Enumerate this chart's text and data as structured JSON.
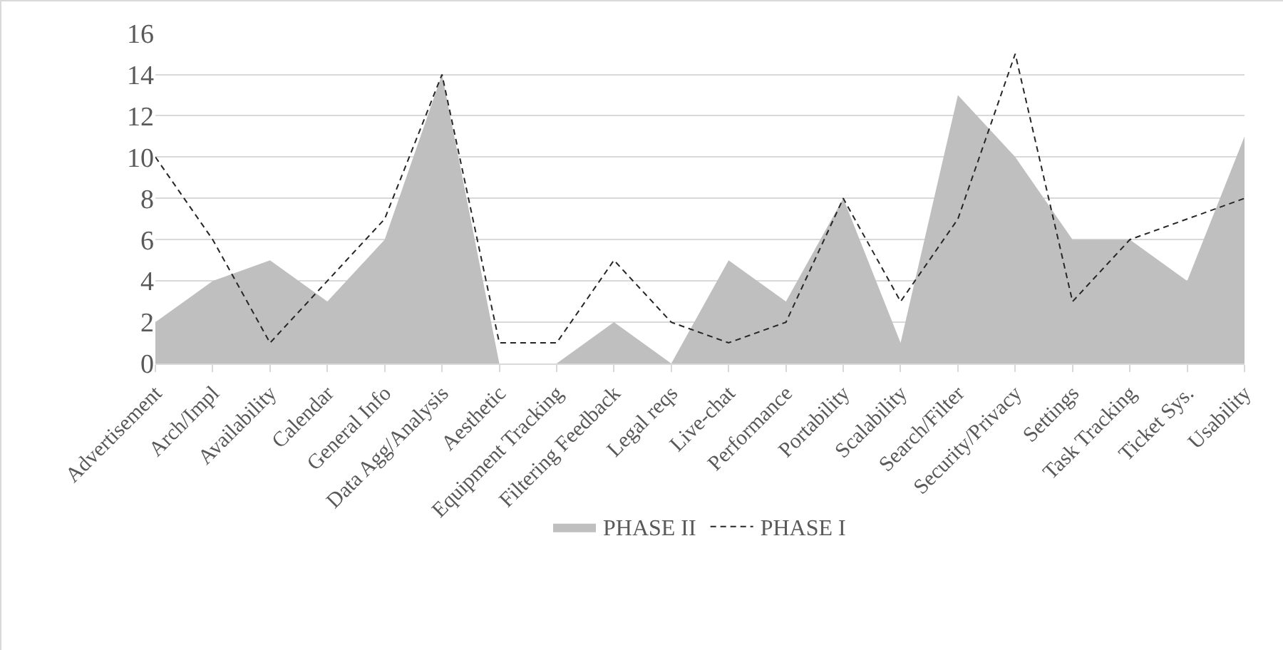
{
  "chart_data": {
    "type": "area",
    "categories": [
      "Advertisement",
      "Arch/Impl",
      "Availability",
      "Calendar",
      "General Info",
      "Data Agg/Analysis",
      "Aesthetic",
      "Equipment Tracking",
      "Filtering Feedback",
      "Legal reqs",
      "Live-chat",
      "Performance",
      "Portability",
      "Scalability",
      "Search/Filter",
      "Security/Privacy",
      "Settings",
      "Task Tracking",
      "Ticket Sys.",
      "Usability"
    ],
    "series": [
      {
        "name": "PHASE II",
        "color": "#bfbfbf",
        "values": [
          2,
          4,
          5,
          3,
          6,
          14,
          0,
          0,
          2,
          0,
          5,
          3,
          8,
          1,
          13,
          10,
          6,
          6,
          4,
          11
        ]
      },
      {
        "name": "PHASE I",
        "type": "line",
        "color": "#262626",
        "line_style": "dashed",
        "values": [
          10,
          6,
          1,
          4,
          7,
          14,
          1,
          1,
          5,
          2,
          1,
          2,
          8,
          3,
          7,
          15,
          3,
          6,
          7,
          8
        ]
      }
    ],
    "ylim": [
      0,
      16
    ],
    "yticks": [
      0,
      2,
      4,
      6,
      8,
      10,
      12,
      14,
      16
    ],
    "grid": "y",
    "legend": "bottom",
    "marker": "none"
  }
}
